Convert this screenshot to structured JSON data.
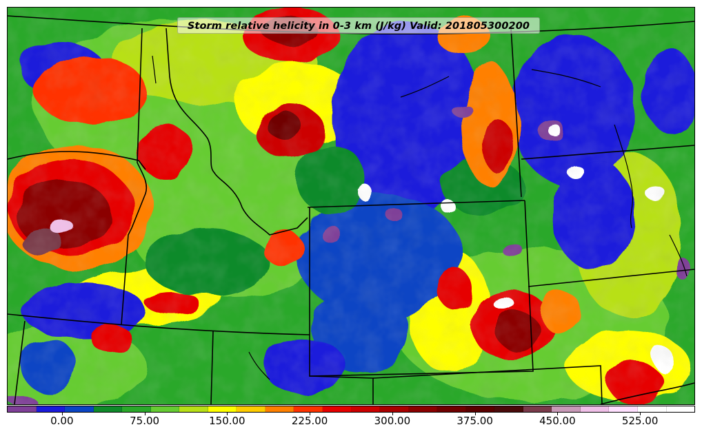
{
  "title": "Storm relative helicity in 0-3 km (J/kg) Valid: 201805300200",
  "colorbar": {
    "colors": [
      "#7f3f98",
      "#1a1adb",
      "#0a44c4",
      "#0f8a2a",
      "#2aa82a",
      "#66cc33",
      "#b8e016",
      "#ffff00",
      "#ffcc00",
      "#ff8000",
      "#ff3300",
      "#e60000",
      "#cc0000",
      "#aa0000",
      "#8b0000",
      "#700000",
      "#5a0000",
      "#4a0a0a",
      "#7a3a4a",
      "#c89ab8",
      "#f0c0e8",
      "#ffe0ff",
      "#ffffff",
      "#ffffff"
    ],
    "ticks": [
      {
        "label": "0.00",
        "value": 0
      },
      {
        "label": "75.00",
        "value": 75
      },
      {
        "label": "150.00",
        "value": 150
      },
      {
        "label": "225.00",
        "value": 225
      },
      {
        "label": "300.00",
        "value": 300
      },
      {
        "label": "375.00",
        "value": 375
      },
      {
        "label": "450.00",
        "value": 450
      },
      {
        "label": "525.00",
        "value": 525
      }
    ],
    "range": [
      -50,
      575
    ]
  },
  "map": {
    "field": "storm relative helicity 0-3 km",
    "units": "J/kg",
    "region": "northwestern and central United States",
    "boundaries": "state borders",
    "palette": {
      "purple": "#7f3f98",
      "blue": "#1a1adb",
      "green": "#0f8a2a",
      "light_green": "#66cc33",
      "yellow": "#ffff00",
      "orange": "#ff8000",
      "red": "#e60000",
      "dark_red": "#7a0000",
      "pink": "#f0c0e8",
      "white": "#ffffff"
    }
  }
}
